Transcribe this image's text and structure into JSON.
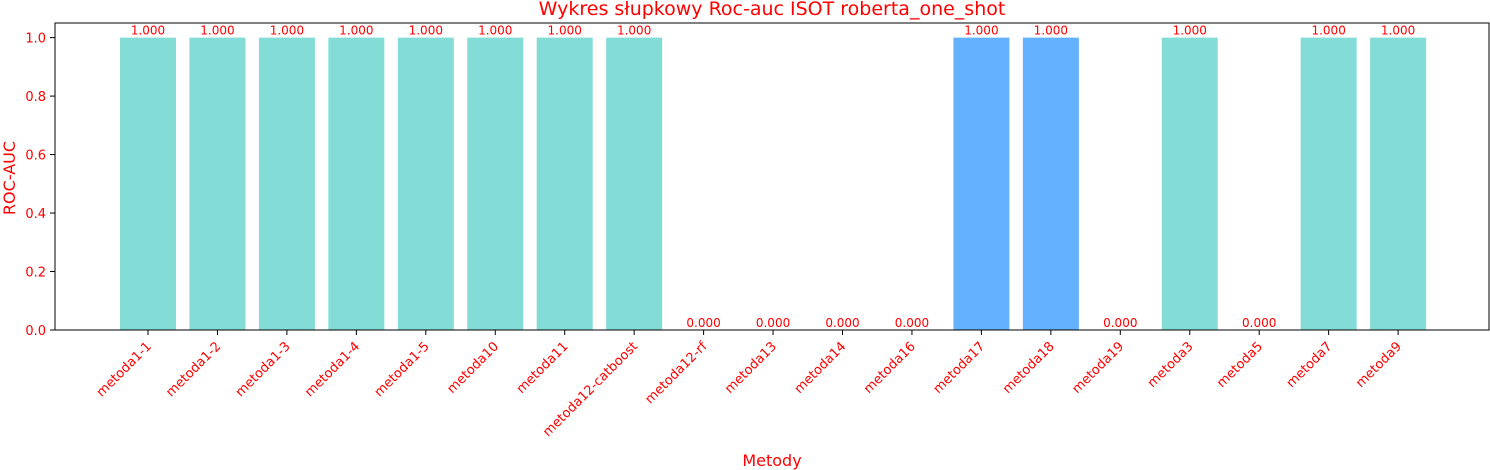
{
  "chart_data": {
    "type": "bar",
    "title": "Wykres słupkowy Roc-auc ISOT roberta_one_shot",
    "xlabel": "Metody",
    "ylabel": "ROC-AUC",
    "ylim": [
      0,
      1.05
    ],
    "yticks": [
      "0.0",
      "0.2",
      "0.4",
      "0.6",
      "0.8",
      "1.0"
    ],
    "grid": false,
    "categories": [
      "metoda1-1",
      "metoda1-2",
      "metoda1-3",
      "metoda1-4",
      "metoda1-5",
      "metoda10",
      "metoda11",
      "metoda12-catboost",
      "metoda12-rf",
      "metoda13",
      "metoda14",
      "metoda16",
      "metoda17",
      "metoda18",
      "metoda19",
      "metoda3",
      "metoda5",
      "metoda7",
      "metoda9"
    ],
    "values": [
      1.0,
      1.0,
      1.0,
      1.0,
      1.0,
      1.0,
      1.0,
      1.0,
      0.0,
      0.0,
      0.0,
      0.0,
      1.0,
      1.0,
      0.0,
      1.0,
      0.0,
      1.0,
      1.0
    ],
    "value_labels": [
      "1.000",
      "1.000",
      "1.000",
      "1.000",
      "1.000",
      "1.000",
      "1.000",
      "1.000",
      "0.000",
      "0.000",
      "0.000",
      "0.000",
      "1.000",
      "1.000",
      "0.000",
      "1.000",
      "0.000",
      "1.000",
      "1.000"
    ],
    "bar_colors": [
      "#84dcd6",
      "#84dcd6",
      "#84dcd6",
      "#84dcd6",
      "#84dcd6",
      "#84dcd6",
      "#84dcd6",
      "#84dcd6",
      "#84dcd6",
      "#84dcd6",
      "#84dcd6",
      "#84dcd6",
      "#64b1ff",
      "#64b1ff",
      "#84dcd6",
      "#84dcd6",
      "#84dcd6",
      "#84dcd6",
      "#84dcd6"
    ],
    "text_color": "#ff0000"
  }
}
